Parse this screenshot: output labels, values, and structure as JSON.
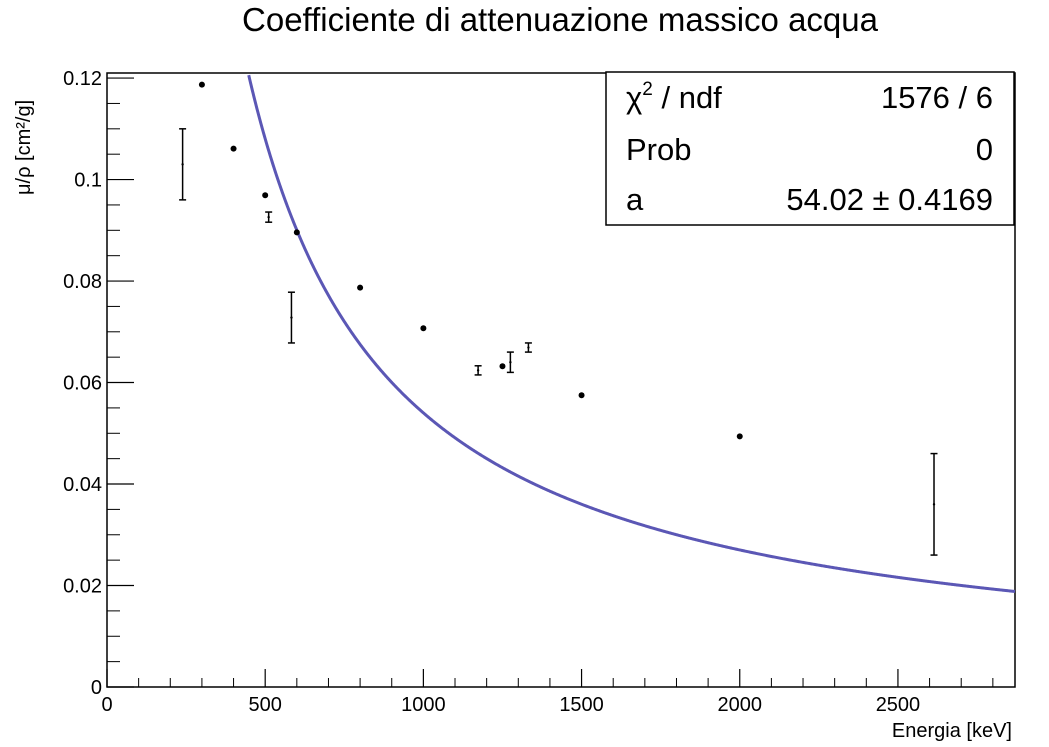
{
  "chart_data": {
    "type": "scatter",
    "title": "Coefficiente di attenuazione massico acqua",
    "xlabel": "Energia [keV]",
    "ylabel": "μ/ρ [cm²/g]",
    "xlim": [
      0,
      2870
    ],
    "ylim": [
      0,
      0.121
    ],
    "x_ticks": [
      0,
      500,
      1000,
      1500,
      2000,
      2500
    ],
    "x_tick_labels": [
      "0",
      "500",
      "1000",
      "1500",
      "2000",
      "2500"
    ],
    "y_ticks": [
      0,
      0.02,
      0.04,
      0.06,
      0.08,
      0.1,
      0.12
    ],
    "y_tick_labels": [
      "0",
      "0.02",
      "0.04",
      "0.06",
      "0.08",
      "0.1",
      "0.12"
    ],
    "grid": false,
    "series": [
      {
        "kind": "points",
        "color": "#000000",
        "points": [
          {
            "x": 300,
            "y": 0.1187
          },
          {
            "x": 400,
            "y": 0.1061
          },
          {
            "x": 500,
            "y": 0.0969
          },
          {
            "x": 600,
            "y": 0.0896
          },
          {
            "x": 800,
            "y": 0.0787
          },
          {
            "x": 1000,
            "y": 0.0707
          },
          {
            "x": 1250,
            "y": 0.0632
          },
          {
            "x": 1500,
            "y": 0.0575
          },
          {
            "x": 2000,
            "y": 0.0494
          }
        ]
      },
      {
        "kind": "errorbars",
        "color": "#000000",
        "points": [
          {
            "x": 239,
            "y": 0.103,
            "err": 0.007
          },
          {
            "x": 511,
            "y": 0.0926,
            "err": 0.001
          },
          {
            "x": 583,
            "y": 0.0728,
            "err": 0.005
          },
          {
            "x": 1173,
            "y": 0.0624,
            "err": 0.0009
          },
          {
            "x": 1275,
            "y": 0.064,
            "err": 0.002
          },
          {
            "x": 1332,
            "y": 0.0669,
            "err": 0.0009
          },
          {
            "x": 2614,
            "y": 0.036,
            "err": 0.01
          }
        ]
      },
      {
        "kind": "fit",
        "function": "a / x",
        "a": 54.02,
        "color": "#5b57b5",
        "x_range": [
          200,
          2870
        ]
      }
    ],
    "stats_box": {
      "position": "top-right",
      "rows": [
        {
          "label_main": "χ",
          "label_sup": "2",
          "label_rest": " / ndf",
          "value": "1576 / 6"
        },
        {
          "label_main": "Prob",
          "label_sup": "",
          "label_rest": "",
          "value": "0"
        },
        {
          "label_main": "a",
          "label_sup": "",
          "label_rest": "",
          "value": "54.02 ± 0.4169"
        }
      ]
    }
  }
}
